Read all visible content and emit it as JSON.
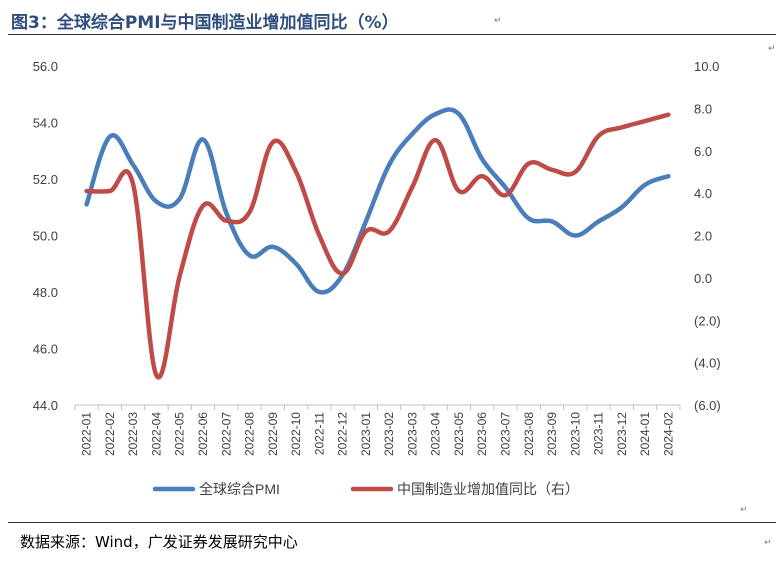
{
  "header": {
    "title": "图3：全球综合PMI与中国制造业增加值同比（%）"
  },
  "footer": {
    "source": "数据来源：Wind，广发证券发展研究中心"
  },
  "chart_data": {
    "type": "line",
    "categories": [
      "2022-01",
      "2022-02",
      "2022-03",
      "2022-04",
      "2022-05",
      "2022-06",
      "2022-07",
      "2022-08",
      "2022-09",
      "2022-10",
      "2022-11",
      "2022-12",
      "2023-01",
      "2023-02",
      "2023-03",
      "2023-04",
      "2023-05",
      "2023-06",
      "2023-07",
      "2023-08",
      "2023-09",
      "2023-10",
      "2023-11",
      "2023-12",
      "2024-01",
      "2024-02"
    ],
    "left_axis": {
      "ylim": [
        44,
        56
      ],
      "ticks": [
        "44.0",
        "46.0",
        "48.0",
        "50.0",
        "52.0",
        "54.0",
        "56.0"
      ]
    },
    "right_axis": {
      "ylim": [
        -6,
        10
      ],
      "ticks": [
        "(6.0)",
        "(4.0)",
        "(2.0)",
        "0.0",
        "2.0",
        "4.0",
        "6.0",
        "8.0",
        "10.0"
      ]
    },
    "series": [
      {
        "name": "全球综合PMI",
        "axis": "left",
        "color": "#4A7EBB",
        "values": [
          51.1,
          53.5,
          52.5,
          51.2,
          51.3,
          53.4,
          50.8,
          49.3,
          49.6,
          49.0,
          48.0,
          48.6,
          50.5,
          52.5,
          53.6,
          54.3,
          54.3,
          52.7,
          51.7,
          50.6,
          50.5,
          50.0,
          50.5,
          51.0,
          51.8,
          52.1
        ]
      },
      {
        "name": "中国制造业增加值同比（右）",
        "axis": "right",
        "color": "#BE4B48",
        "values": [
          4.1,
          4.1,
          4.4,
          -4.6,
          0.1,
          3.4,
          2.7,
          3.1,
          6.4,
          5.0,
          2.0,
          0.2,
          2.2,
          2.2,
          4.3,
          6.5,
          4.1,
          4.8,
          3.9,
          5.4,
          5.1,
          5.0,
          6.7,
          7.1,
          7.4,
          7.7
        ]
      }
    ],
    "legend": {
      "position": "bottom"
    },
    "grid": false
  }
}
